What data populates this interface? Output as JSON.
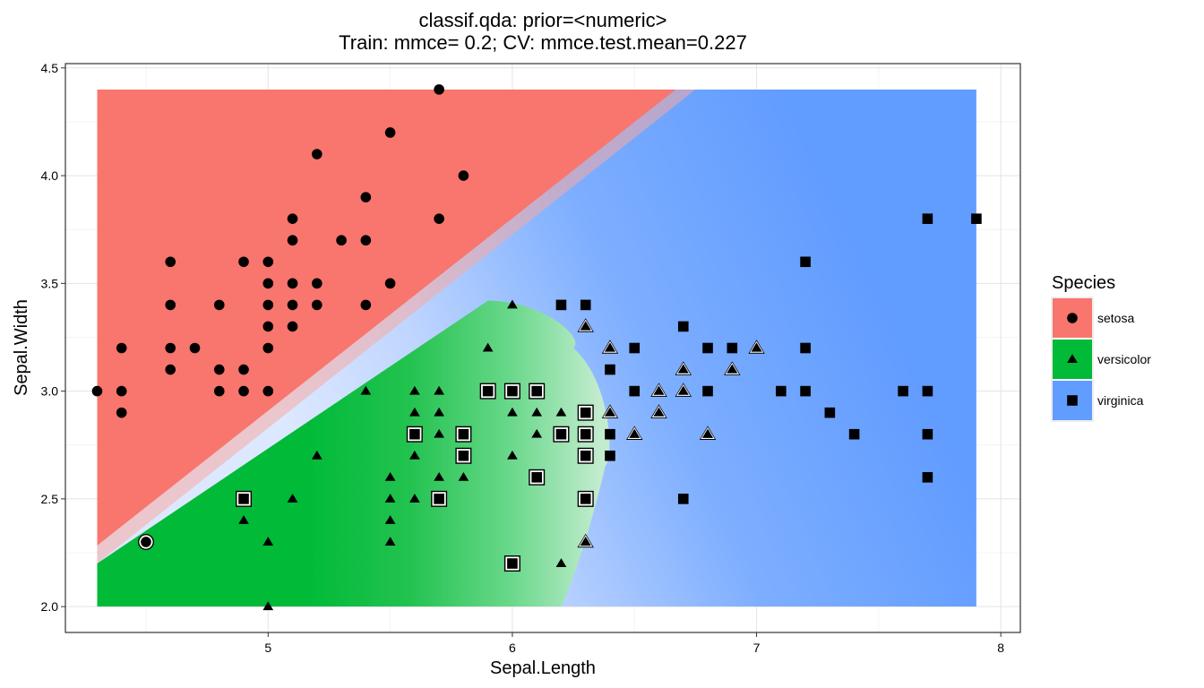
{
  "chart_data": {
    "type": "scatter",
    "title": "classif.qda: prior=<numeric>",
    "subtitle": "Train: mmce= 0.2; CV: mmce.test.mean=0.227",
    "xlabel": "Sepal.Length",
    "ylabel": "Sepal.Width",
    "xlim": [
      4.17,
      8.08
    ],
    "ylim": [
      1.88,
      4.52
    ],
    "x_ticks": [
      5,
      6,
      7,
      8
    ],
    "x_tick_labels": [
      "5",
      "6",
      "7",
      "8"
    ],
    "y_ticks": [
      2.0,
      2.5,
      3.0,
      3.5,
      4.0,
      4.5
    ],
    "y_tick_labels": [
      "2.0",
      "2.5",
      "3.0",
      "3.5",
      "4.0",
      "4.5"
    ],
    "grid": true,
    "legend": {
      "title": "Species",
      "position": "right",
      "entries": [
        {
          "label": "setosa",
          "shape": "circle",
          "color": "#F8766D"
        },
        {
          "label": "versicolor",
          "shape": "triangle",
          "color": "#00BA38"
        },
        {
          "label": "virginica",
          "shape": "square",
          "color": "#619CFF"
        }
      ]
    },
    "background_region": {
      "x": [
        4.3,
        7.9
      ],
      "y": [
        2.0,
        4.4
      ]
    },
    "series": [
      {
        "name": "setosa",
        "shape": "circle",
        "points": [
          [
            4.3,
            3.0
          ],
          [
            4.4,
            3.2
          ],
          [
            4.4,
            3.0
          ],
          [
            4.4,
            2.9
          ],
          [
            4.5,
            2.3
          ],
          [
            4.6,
            3.6
          ],
          [
            4.6,
            3.4
          ],
          [
            4.6,
            3.2
          ],
          [
            4.6,
            3.1
          ],
          [
            4.7,
            3.2
          ],
          [
            4.8,
            3.4
          ],
          [
            4.8,
            3.1
          ],
          [
            4.8,
            3.0
          ],
          [
            4.9,
            3.6
          ],
          [
            4.9,
            3.1
          ],
          [
            4.9,
            3.0
          ],
          [
            5.0,
            3.6
          ],
          [
            5.0,
            3.5
          ],
          [
            5.0,
            3.4
          ],
          [
            5.0,
            3.3
          ],
          [
            5.0,
            3.2
          ],
          [
            5.0,
            3.0
          ],
          [
            5.1,
            3.8
          ],
          [
            5.1,
            3.7
          ],
          [
            5.1,
            3.5
          ],
          [
            5.1,
            3.4
          ],
          [
            5.1,
            3.3
          ],
          [
            5.2,
            4.1
          ],
          [
            5.2,
            3.5
          ],
          [
            5.2,
            3.4
          ],
          [
            5.3,
            3.7
          ],
          [
            5.4,
            3.9
          ],
          [
            5.4,
            3.7
          ],
          [
            5.4,
            3.4
          ],
          [
            5.5,
            4.2
          ],
          [
            5.5,
            3.5
          ],
          [
            5.7,
            4.4
          ],
          [
            5.7,
            3.8
          ],
          [
            5.8,
            4.0
          ]
        ],
        "misclassified": [
          [
            4.5,
            2.3
          ]
        ]
      },
      {
        "name": "versicolor",
        "shape": "triangle",
        "points": [
          [
            4.9,
            2.4
          ],
          [
            5.0,
            2.3
          ],
          [
            5.0,
            2.0
          ],
          [
            5.1,
            2.5
          ],
          [
            5.2,
            2.7
          ],
          [
            5.4,
            3.0
          ],
          [
            5.5,
            2.6
          ],
          [
            5.5,
            2.5
          ],
          [
            5.5,
            2.4
          ],
          [
            5.5,
            2.3
          ],
          [
            5.6,
            3.0
          ],
          [
            5.6,
            2.9
          ],
          [
            5.6,
            2.7
          ],
          [
            5.6,
            2.5
          ],
          [
            5.7,
            3.0
          ],
          [
            5.7,
            2.9
          ],
          [
            5.7,
            2.8
          ],
          [
            5.7,
            2.6
          ],
          [
            5.8,
            2.6
          ],
          [
            5.9,
            3.2
          ],
          [
            6.0,
            3.4
          ],
          [
            6.0,
            2.9
          ],
          [
            6.0,
            2.7
          ],
          [
            6.1,
            2.9
          ],
          [
            6.1,
            2.8
          ],
          [
            6.2,
            2.9
          ],
          [
            6.2,
            2.2
          ],
          [
            6.3,
            3.3
          ],
          [
            6.3,
            2.3
          ],
          [
            6.4,
            3.2
          ],
          [
            6.4,
            2.9
          ],
          [
            6.5,
            2.8
          ],
          [
            6.6,
            3.0
          ],
          [
            6.6,
            2.9
          ],
          [
            6.7,
            3.1
          ],
          [
            6.7,
            3.0
          ],
          [
            6.8,
            2.8
          ],
          [
            6.9,
            3.1
          ],
          [
            7.0,
            3.2
          ]
        ],
        "misclassified": [
          [
            6.3,
            3.3
          ],
          [
            6.3,
            2.3
          ],
          [
            6.4,
            3.2
          ],
          [
            6.4,
            2.9
          ],
          [
            6.5,
            2.8
          ],
          [
            6.6,
            3.0
          ],
          [
            6.6,
            2.9
          ],
          [
            6.7,
            3.1
          ],
          [
            6.7,
            3.0
          ],
          [
            6.8,
            2.8
          ],
          [
            6.9,
            3.1
          ],
          [
            7.0,
            3.2
          ]
        ]
      },
      {
        "name": "virginica",
        "shape": "square",
        "points": [
          [
            4.9,
            2.5
          ],
          [
            5.6,
            2.8
          ],
          [
            5.7,
            2.5
          ],
          [
            5.8,
            2.8
          ],
          [
            5.8,
            2.7
          ],
          [
            5.9,
            3.0
          ],
          [
            6.0,
            3.0
          ],
          [
            6.0,
            2.2
          ],
          [
            6.1,
            3.0
          ],
          [
            6.1,
            2.6
          ],
          [
            6.2,
            3.4
          ],
          [
            6.2,
            2.8
          ],
          [
            6.3,
            3.4
          ],
          [
            6.3,
            2.9
          ],
          [
            6.3,
            2.8
          ],
          [
            6.3,
            2.7
          ],
          [
            6.3,
            2.5
          ],
          [
            6.4,
            3.1
          ],
          [
            6.4,
            2.8
          ],
          [
            6.4,
            2.7
          ],
          [
            6.5,
            3.2
          ],
          [
            6.5,
            3.0
          ],
          [
            6.7,
            3.3
          ],
          [
            6.7,
            2.5
          ],
          [
            6.8,
            3.2
          ],
          [
            6.8,
            3.0
          ],
          [
            6.9,
            3.2
          ],
          [
            7.1,
            3.0
          ],
          [
            7.2,
            3.6
          ],
          [
            7.2,
            3.2
          ],
          [
            7.2,
            3.0
          ],
          [
            7.3,
            2.9
          ],
          [
            7.4,
            2.8
          ],
          [
            7.6,
            3.0
          ],
          [
            7.7,
            3.8
          ],
          [
            7.7,
            3.0
          ],
          [
            7.7,
            2.8
          ],
          [
            7.7,
            2.6
          ],
          [
            7.9,
            3.8
          ]
        ],
        "misclassified": [
          [
            4.9,
            2.5
          ],
          [
            5.6,
            2.8
          ],
          [
            5.7,
            2.5
          ],
          [
            5.8,
            2.8
          ],
          [
            5.8,
            2.7
          ],
          [
            5.9,
            3.0
          ],
          [
            6.0,
            3.0
          ],
          [
            6.0,
            2.2
          ],
          [
            6.1,
            3.0
          ],
          [
            6.1,
            2.6
          ],
          [
            6.2,
            2.8
          ],
          [
            6.3,
            2.9
          ],
          [
            6.3,
            2.8
          ],
          [
            6.3,
            2.7
          ],
          [
            6.3,
            2.5
          ]
        ]
      }
    ]
  }
}
